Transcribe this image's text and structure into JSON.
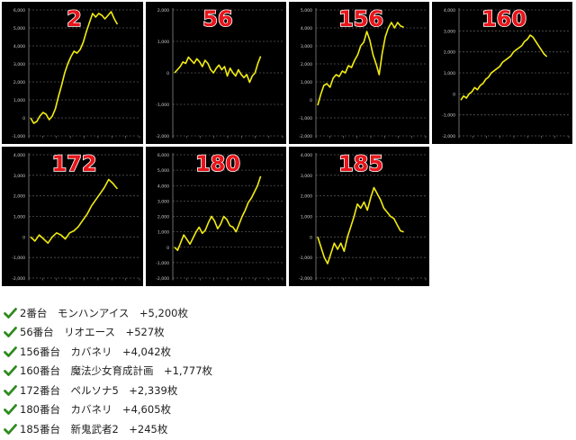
{
  "colors": {
    "line": "#f2ec10",
    "machine_number": "#e8151b",
    "background": "#000000",
    "grid": "#555555",
    "check": "#2e8b1e"
  },
  "chart_data": [
    {
      "type": "line",
      "number_label": "2",
      "yticks": [
        "6,000",
        "5,000",
        "4,000",
        "3,000",
        "2,000",
        "1,000",
        "0",
        "-1,000"
      ],
      "ylim": [
        -1000,
        6000
      ],
      "values": [
        0,
        -300,
        -200,
        100,
        300,
        200,
        -100,
        100,
        500,
        1200,
        1800,
        2500,
        3000,
        3400,
        3700,
        3600,
        3800,
        4200,
        4800,
        5300,
        5800,
        5600,
        5800,
        5700,
        5500,
        5700,
        5900,
        5500,
        5200
      ]
    },
    {
      "type": "line",
      "number_label": "56",
      "yticks": [
        "2,000",
        "1,000",
        "0",
        "-1,000",
        "-2,000"
      ],
      "ylim": [
        -2000,
        2000
      ],
      "values": [
        0,
        100,
        200,
        350,
        300,
        500,
        400,
        300,
        450,
        350,
        200,
        400,
        300,
        100,
        0,
        150,
        250,
        100,
        200,
        -100,
        150,
        0,
        -100,
        100,
        -50,
        -150,
        -50,
        -300,
        -100,
        0,
        300,
        527
      ]
    },
    {
      "type": "line",
      "number_label": "156",
      "yticks": [
        "5,000",
        "4,000",
        "3,000",
        "2,000",
        "1,000",
        "0",
        "-1,000",
        "-2,000"
      ],
      "ylim": [
        -2000,
        5000
      ],
      "values": [
        -300,
        300,
        800,
        900,
        700,
        1200,
        1400,
        1300,
        1600,
        1500,
        1900,
        1800,
        2200,
        2500,
        3000,
        3200,
        3800,
        3300,
        2500,
        2000,
        1400,
        2600,
        3500,
        4000,
        4300,
        4000,
        4300,
        4100,
        4042
      ]
    },
    {
      "type": "line",
      "number_label": "160",
      "yticks": [
        "4,000",
        "3,000",
        "2,000",
        "1,000",
        "0",
        "-1,000",
        "-2,000"
      ],
      "ylim": [
        -2000,
        4000
      ],
      "values": [
        -300,
        -100,
        -200,
        0,
        100,
        300,
        200,
        400,
        500,
        700,
        800,
        1000,
        1100,
        1200,
        1300,
        1500,
        1600,
        1700,
        1800,
        2000,
        2100,
        2200,
        2300,
        2500,
        2600,
        2800,
        2700,
        2500,
        2300,
        2100,
        1900,
        1777
      ]
    },
    {
      "type": "line",
      "number_label": "172",
      "yticks": [
        "4,000",
        "3,000",
        "2,000",
        "1,000",
        "0",
        "-1,000",
        "-2,000"
      ],
      "ylim": [
        -2000,
        4000
      ],
      "values": [
        0,
        -200,
        100,
        -100,
        -300,
        0,
        200,
        100,
        -100,
        200,
        300,
        500,
        800,
        1100,
        1500,
        1800,
        2100,
        2400,
        2800,
        2600,
        2339
      ]
    },
    {
      "type": "line",
      "number_label": "180",
      "yticks": [
        "6,000",
        "5,000",
        "4,000",
        "3,000",
        "2,000",
        "1,000",
        "0",
        "-1,000",
        "-2,000"
      ],
      "ylim": [
        -2000,
        6000
      ],
      "values": [
        0,
        -200,
        300,
        800,
        500,
        200,
        600,
        1000,
        1300,
        900,
        1100,
        1600,
        2000,
        1700,
        1200,
        1500,
        2000,
        1800,
        1400,
        1300,
        1000,
        1500,
        2000,
        2400,
        2900,
        3200,
        3600,
        4000,
        4605
      ]
    },
    {
      "type": "line",
      "number_label": "185",
      "yticks": [
        "4,000",
        "3,000",
        "2,000",
        "1,000",
        "0",
        "-1,000",
        "-2,000"
      ],
      "ylim": [
        -2000,
        4000
      ],
      "values": [
        0,
        -500,
        -1000,
        -1300,
        -800,
        -300,
        -600,
        -300,
        -700,
        0,
        500,
        1000,
        1600,
        1400,
        1700,
        1300,
        1900,
        2400,
        2100,
        1800,
        1400,
        1200,
        1000,
        900,
        600,
        300,
        245
      ]
    }
  ],
  "results": [
    {
      "text": "2番台　モンハンアイス　+5,200枚"
    },
    {
      "text": "56番台　リオエース　+527枚"
    },
    {
      "text": "156番台　カバネリ　+4,042枚"
    },
    {
      "text": "160番台　魔法少女育成計画　+1,777枚"
    },
    {
      "text": "172番台　ペルソナ5　+2,339枚"
    },
    {
      "text": "180番台　カバネリ　+4,605枚"
    },
    {
      "text": "185番台　新鬼武者2　+245枚"
    }
  ]
}
